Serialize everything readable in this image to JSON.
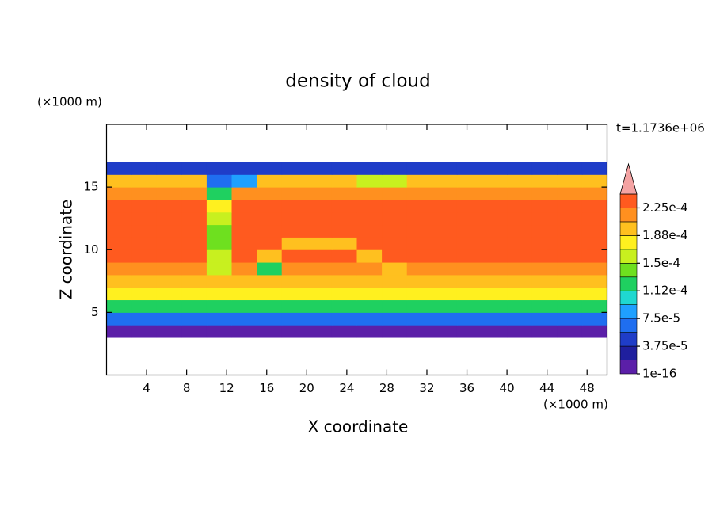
{
  "chart_data": {
    "type": "contour",
    "title": "density of cloud",
    "x_unit_label": "(×1000 m)",
    "y_unit_label": "(×1000 m)",
    "time_label": "t=1.1736e+06",
    "xlabel": "X coordinate",
    "ylabel": "Z coordinate",
    "xlim": [
      0,
      50
    ],
    "ylim": [
      0,
      20
    ],
    "xticks": [
      4,
      8,
      12,
      16,
      20,
      24,
      28,
      32,
      36,
      40,
      44,
      48
    ],
    "yticks": [
      5,
      10,
      15
    ],
    "x": [
      1.25,
      3.75,
      6.25,
      8.75,
      11.25,
      13.75,
      16.25,
      18.75,
      21.25,
      23.75,
      26.25,
      28.75,
      31.25,
      33.75,
      36.25,
      38.75,
      41.25,
      43.75,
      46.25,
      48.75
    ],
    "y": [
      3.5,
      4.5,
      5.5,
      6.5,
      7.5,
      8.5,
      9.5,
      10.5,
      11.5,
      12.5,
      13.5,
      14.5,
      15.5,
      16.5
    ],
    "z": [
      [
        1e-05,
        1e-05,
        1e-05,
        1e-05,
        1e-05,
        1e-05,
        1e-05,
        1e-05,
        1e-05,
        1e-05,
        1e-05,
        1e-05,
        1e-05,
        1e-05,
        1e-05,
        1e-05,
        1e-05,
        1e-05,
        1e-05,
        1e-05
      ],
      [
        6e-05,
        6e-05,
        6e-05,
        6e-05,
        6e-05,
        6e-05,
        6e-05,
        6e-05,
        6e-05,
        6e-05,
        6e-05,
        6e-05,
        6e-05,
        6e-05,
        6e-05,
        6e-05,
        6e-05,
        6e-05,
        6e-05,
        6e-05
      ],
      [
        0.00012,
        0.00012,
        0.00012,
        0.00012,
        0.00012,
        0.00012,
        0.00012,
        0.00012,
        0.00012,
        0.00012,
        0.00012,
        0.00012,
        0.00012,
        0.00012,
        0.00012,
        0.00012,
        0.00012,
        0.00012,
        0.00012,
        0.00012
      ],
      [
        0.00017,
        0.00017,
        0.00017,
        0.00017,
        0.00017,
        0.00017,
        0.00017,
        0.00017,
        0.00017,
        0.00017,
        0.00017,
        0.00017,
        0.00017,
        0.00017,
        0.00017,
        0.00017,
        0.00017,
        0.00017,
        0.00017,
        0.00017
      ],
      [
        0.0002,
        0.0002,
        0.0002,
        0.0002,
        0.0002,
        0.0002,
        0.0002,
        0.0002,
        0.0002,
        0.0002,
        0.0002,
        0.0002,
        0.0002,
        0.0002,
        0.0002,
        0.0002,
        0.0002,
        0.0002,
        0.0002,
        0.0002
      ],
      [
        0.00022,
        0.00022,
        0.00022,
        0.00022,
        0.00015,
        0.00022,
        0.00012,
        0.00022,
        0.00022,
        0.00022,
        0.00022,
        0.0002,
        0.00022,
        0.00022,
        0.00022,
        0.00022,
        0.00022,
        0.00022,
        0.00022,
        0.00022
      ],
      [
        0.00023,
        0.00023,
        0.00023,
        0.00023,
        0.00015,
        0.00023,
        0.0002,
        0.00023,
        0.00023,
        0.00023,
        0.0002,
        0.00023,
        0.00023,
        0.00023,
        0.00023,
        0.00023,
        0.00023,
        0.00023,
        0.00023,
        0.00023
      ],
      [
        0.00023,
        0.00023,
        0.00023,
        0.00023,
        0.00014,
        0.00023,
        0.00023,
        0.0002,
        0.0002,
        0.0002,
        0.00023,
        0.00023,
        0.00023,
        0.00023,
        0.00023,
        0.00023,
        0.00023,
        0.00023,
        0.00023,
        0.00023
      ],
      [
        0.00023,
        0.00023,
        0.00023,
        0.00023,
        0.00014,
        0.00023,
        0.00023,
        0.00023,
        0.00023,
        0.00023,
        0.00023,
        0.00023,
        0.00023,
        0.00023,
        0.00023,
        0.00023,
        0.00023,
        0.00023,
        0.00023,
        0.00023
      ],
      [
        0.00023,
        0.00023,
        0.00023,
        0.00023,
        0.00016,
        0.00023,
        0.00023,
        0.00023,
        0.00023,
        0.00023,
        0.00023,
        0.00023,
        0.00023,
        0.00023,
        0.00023,
        0.00023,
        0.00023,
        0.00023,
        0.00023,
        0.00023
      ],
      [
        0.00023,
        0.00023,
        0.00023,
        0.00023,
        0.00018,
        0.00023,
        0.00023,
        0.00023,
        0.00023,
        0.00023,
        0.00023,
        0.00023,
        0.00023,
        0.00023,
        0.00023,
        0.00023,
        0.00023,
        0.00023,
        0.00023,
        0.00023
      ],
      [
        0.00022,
        0.00022,
        0.00022,
        0.00022,
        0.00013,
        0.00022,
        0.00022,
        0.00022,
        0.00022,
        0.00022,
        0.00022,
        0.00022,
        0.00022,
        0.00022,
        0.00022,
        0.00022,
        0.00022,
        0.00022,
        0.00022,
        0.00022
      ],
      [
        0.0002,
        0.0002,
        0.0002,
        0.0002,
        6e-05,
        9e-05,
        0.0002,
        0.0002,
        0.0002,
        0.0002,
        0.00015,
        0.00015,
        0.0002,
        0.0002,
        0.0002,
        0.0002,
        0.0002,
        0.0002,
        0.0002,
        0.0002
      ],
      [
        4e-05,
        4e-05,
        4e-05,
        4e-05,
        4e-05,
        4e-05,
        4e-05,
        4e-05,
        4e-05,
        4e-05,
        4e-05,
        4e-05,
        4e-05,
        4e-05,
        4e-05,
        4e-05,
        4e-05,
        4e-05,
        4e-05,
        4e-05
      ]
    ],
    "levels": [
      1e-16,
      1.875e-05,
      3.75e-05,
      5.625e-05,
      7.5e-05,
      9.375e-05,
      0.0001125,
      0.00013125,
      0.00015,
      0.00016875,
      0.0001875,
      0.00020625,
      0.000225,
      0.00024375
    ],
    "colors": [
      "#5b1fa8",
      "#1f1f9e",
      "#1f3dc8",
      "#1f6ef0",
      "#1fa0ff",
      "#1fd8d0",
      "#1fd060",
      "#6ee01f",
      "#c8f01f",
      "#fff01f",
      "#ffc01f",
      "#ff901f",
      "#ff5a1f"
    ],
    "extend_color": "#f4a3a3",
    "colorbar_ticks": [
      {
        "value": 1e-16,
        "label": "1e-16"
      },
      {
        "value": 3.75e-05,
        "label": "3.75e-5"
      },
      {
        "value": 7.5e-05,
        "label": "7.5e-5"
      },
      {
        "value": 0.0001125,
        "label": "1.12e-4"
      },
      {
        "value": 0.00015,
        "label": "1.5e-4"
      },
      {
        "value": 0.0001875,
        "label": "1.88e-4"
      },
      {
        "value": 0.000225,
        "label": "2.25e-4"
      }
    ]
  }
}
